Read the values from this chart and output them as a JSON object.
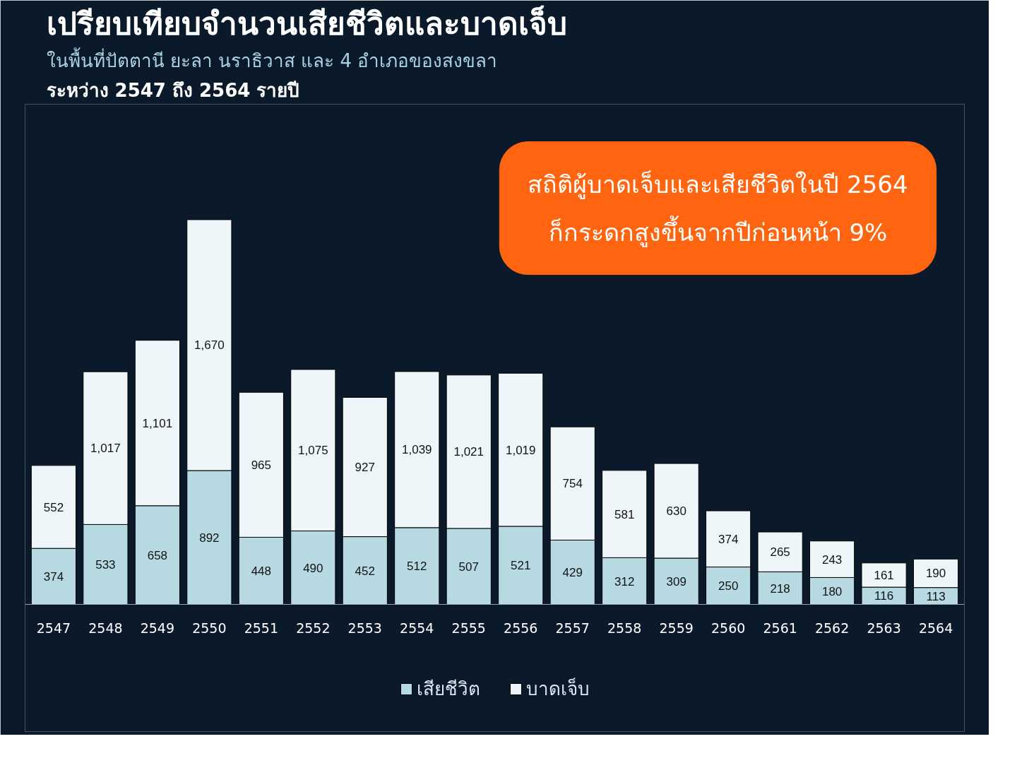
{
  "chart_data": {
    "type": "bar",
    "stacked": true,
    "legend": "bottom",
    "grid": false,
    "title": "เปรียบเทียบจำนวนเสียชีวิตและบาดเจ็บ",
    "subtitle": "ในพื้นที่ปัตตานี ยะลา นราธิวาส และ 4 อำเภอของสงขลา",
    "annotations": [
      "ระหว่าง 2547 ถึง 2564 รายปี",
      "สถิติผู้บาดเจ็บและเสียชีวิตในปี 2564\nก็กระดกสูงขึ้นจากปีก่อนหน้า 9%"
    ],
    "categories": [
      "2547",
      "2548",
      "2549",
      "2550",
      "2551",
      "2552",
      "2553",
      "2554",
      "2555",
      "2556",
      "2557",
      "2558",
      "2559",
      "2560",
      "2561",
      "2562",
      "2563",
      "2564"
    ],
    "series": [
      {
        "name": "เสียชีวิต",
        "color": "#b7d9e2",
        "values": [
          374,
          533,
          658,
          892,
          448,
          490,
          452,
          512,
          507,
          521,
          429,
          312,
          309,
          250,
          218,
          180,
          116,
          113
        ],
        "value_labels": [
          "374",
          "533",
          "658",
          "892",
          "448",
          "490",
          "452",
          "512",
          "507",
          "521",
          "429",
          "312",
          "309",
          "250",
          "218",
          "180",
          "116",
          "113"
        ]
      },
      {
        "name": "บาดเจ็บ",
        "color": "#eef6f9",
        "values": [
          552,
          1017,
          1101,
          1670,
          965,
          1075,
          927,
          1039,
          1021,
          1019,
          754,
          581,
          630,
          374,
          265,
          243,
          161,
          190
        ],
        "value_labels": [
          "552",
          "1,017",
          "1,101",
          "1,670",
          "965",
          "1,075",
          "927",
          "1,039",
          "1,021",
          "1,019",
          "754",
          "581",
          "630",
          "374",
          "265",
          "243",
          "161",
          "190"
        ]
      }
    ]
  }
}
